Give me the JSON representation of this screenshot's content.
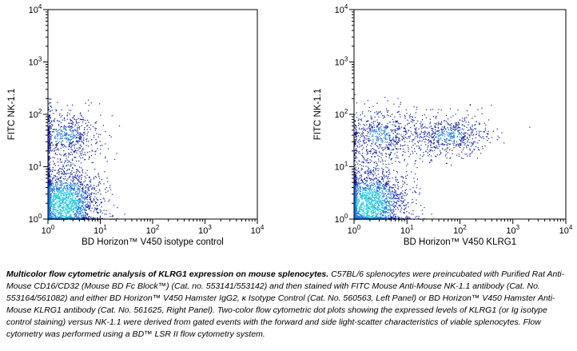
{
  "chart_data": [
    {
      "type": "scatter",
      "subtype": "flow-cytometry-dot-plot",
      "panel": "Left",
      "xlabel": "BD Horizon™ V450 isotype control",
      "ylabel": "FITC NK-1.1",
      "x_scale": "log",
      "y_scale": "log",
      "xlim": [
        1,
        10000
      ],
      "ylim": [
        1,
        10000
      ],
      "x_ticks": [
        "10^0",
        "10^1",
        "10^2",
        "10^3",
        "10^4"
      ],
      "y_ticks": [
        "10^0",
        "10^1",
        "10^2",
        "10^3",
        "10^4"
      ],
      "grid": false,
      "populations": [
        {
          "center": [
            2,
            2
          ],
          "spread_decades": [
            0.35,
            0.35
          ],
          "density": "high",
          "note": "NK-1.1 negative"
        },
        {
          "center": [
            2,
            40
          ],
          "spread_decades": [
            0.35,
            0.25
          ],
          "density": "medium",
          "note": "NK-1.1 positive"
        }
      ]
    },
    {
      "type": "scatter",
      "subtype": "flow-cytometry-dot-plot",
      "panel": "Right",
      "xlabel": "BD Horizon™ V450 KLRG1",
      "ylabel": "FITC NK-1.1",
      "x_scale": "log",
      "y_scale": "log",
      "xlim": [
        1,
        10000
      ],
      "ylim": [
        1,
        10000
      ],
      "x_ticks": [
        "10^0",
        "10^1",
        "10^2",
        "10^3",
        "10^4"
      ],
      "y_ticks": [
        "10^0",
        "10^1",
        "10^2",
        "10^3",
        "10^4"
      ],
      "grid": false,
      "populations": [
        {
          "center": [
            2,
            2
          ],
          "spread_decades": [
            0.35,
            0.35
          ],
          "density": "high",
          "note": "NK-1.1 negative"
        },
        {
          "center": [
            3,
            40
          ],
          "spread_decades": [
            0.35,
            0.25
          ],
          "density": "medium",
          "note": "NK-1.1 positive KLRG1 low"
        },
        {
          "center": [
            60,
            40
          ],
          "spread_decades": [
            0.4,
            0.2
          ],
          "density": "medium",
          "note": "NK-1.1 positive KLRG1 high"
        }
      ]
    }
  ],
  "caption": {
    "lead": "Multicolor flow cytometric analysis of KLRG1 expression on mouse splenocytes.",
    "body": " C57BL/6 splenocytes were preincubated with Purified Rat Anti-Mouse CD16/CD32 (Mouse BD Fc Block™) (Cat. no. 553141/553142) and then stained with FITC Mouse Anti-Mouse NK-1.1 antibody (Cat. No. 553164/561082) and either BD Horizon™ V450 Hamster IgG2, κ Isotype Control (Cat. No. 560563, Left Panel) or  BD Horizon™ V450 Hamster Anti-Mouse KLRG1 antibody (Cat. No. 561625, Right Panel). Two-color flow cytometric dot plots showing the expressed levels of KLRG1 (or Ig isotype control staining) versus NK-1.1 were derived from gated events with the forward and side light-scatter characteristics of viable splenocytes.  Flow cytometry was performed using a BD™ LSR II flow cytometry system."
  },
  "colors": {
    "low_density": "#0a1aa8",
    "mid_density": "#1a78e0",
    "high_density": "#22c8e0",
    "axis": "#000000"
  }
}
